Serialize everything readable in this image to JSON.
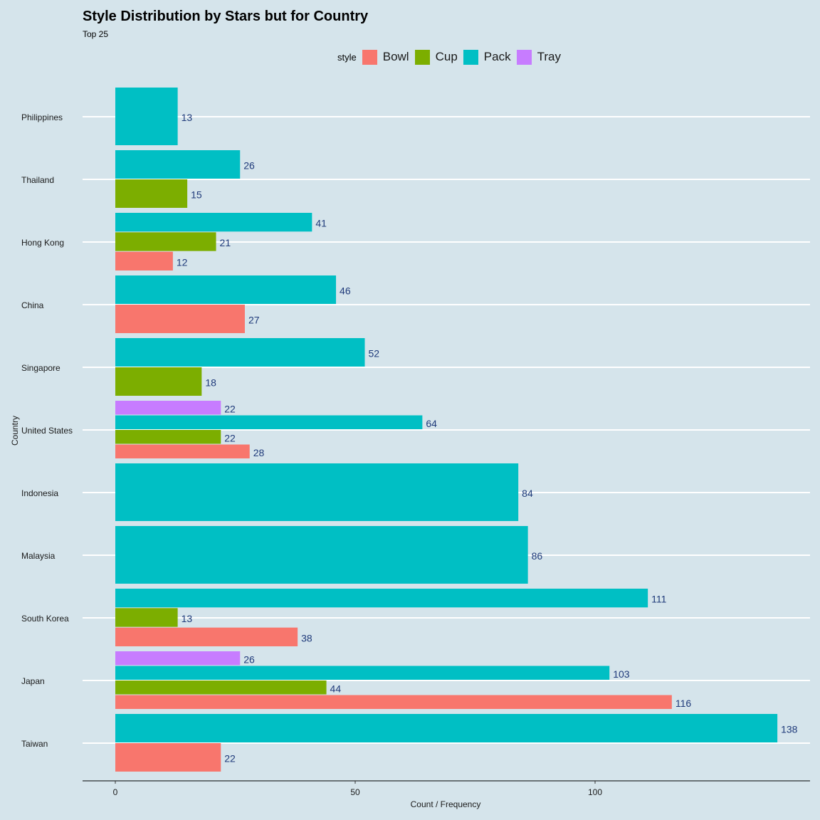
{
  "chart_data": {
    "type": "bar",
    "orientation": "horizontal",
    "title": "Style Distribution by Stars but for Country",
    "subtitle": "Top 25",
    "xlabel": "Count / Frequency",
    "ylabel": "Country",
    "xlim": [
      0,
      140
    ],
    "xticks": [
      0,
      50,
      100
    ],
    "legend": {
      "title": "style",
      "position": "top",
      "entries": [
        {
          "name": "Bowl",
          "color": "#f8766d"
        },
        {
          "name": "Cup",
          "color": "#7cae00"
        },
        {
          "name": "Pack",
          "color": "#00bfc4"
        },
        {
          "name": "Tray",
          "color": "#c77cff"
        }
      ]
    },
    "categories": [
      "Philippines",
      "Thailand",
      "Hong Kong",
      "China",
      "Singapore",
      "United States",
      "Indonesia",
      "Malaysia",
      "South Korea",
      "Japan",
      "Taiwan"
    ],
    "groups": [
      {
        "country": "Philippines",
        "bars": [
          {
            "style": "Pack",
            "value": 13
          }
        ]
      },
      {
        "country": "Thailand",
        "bars": [
          {
            "style": "Pack",
            "value": 26
          },
          {
            "style": "Cup",
            "value": 15
          }
        ]
      },
      {
        "country": "Hong Kong",
        "bars": [
          {
            "style": "Pack",
            "value": 41
          },
          {
            "style": "Cup",
            "value": 21
          },
          {
            "style": "Bowl",
            "value": 12
          }
        ]
      },
      {
        "country": "China",
        "bars": [
          {
            "style": "Pack",
            "value": 46
          },
          {
            "style": "Bowl",
            "value": 27
          }
        ]
      },
      {
        "country": "Singapore",
        "bars": [
          {
            "style": "Pack",
            "value": 52
          },
          {
            "style": "Cup",
            "value": 18
          }
        ]
      },
      {
        "country": "United States",
        "bars": [
          {
            "style": "Tray",
            "value": 22
          },
          {
            "style": "Pack",
            "value": 64
          },
          {
            "style": "Cup",
            "value": 22
          },
          {
            "style": "Bowl",
            "value": 28
          }
        ]
      },
      {
        "country": "Indonesia",
        "bars": [
          {
            "style": "Pack",
            "value": 84
          }
        ]
      },
      {
        "country": "Malaysia",
        "bars": [
          {
            "style": "Pack",
            "value": 86
          }
        ]
      },
      {
        "country": "South Korea",
        "bars": [
          {
            "style": "Pack",
            "value": 111
          },
          {
            "style": "Cup",
            "value": 13
          },
          {
            "style": "Bowl",
            "value": 38
          }
        ]
      },
      {
        "country": "Japan",
        "bars": [
          {
            "style": "Tray",
            "value": 26
          },
          {
            "style": "Pack",
            "value": 103
          },
          {
            "style": "Cup",
            "value": 44
          },
          {
            "style": "Bowl",
            "value": 116
          }
        ]
      },
      {
        "country": "Taiwan",
        "bars": [
          {
            "style": "Pack",
            "value": 138
          },
          {
            "style": "Bowl",
            "value": 22
          }
        ]
      }
    ],
    "label_color": "#1f3a7a",
    "grid_color": "#ffffff",
    "background": "#d5e4eb",
    "grid": true
  }
}
